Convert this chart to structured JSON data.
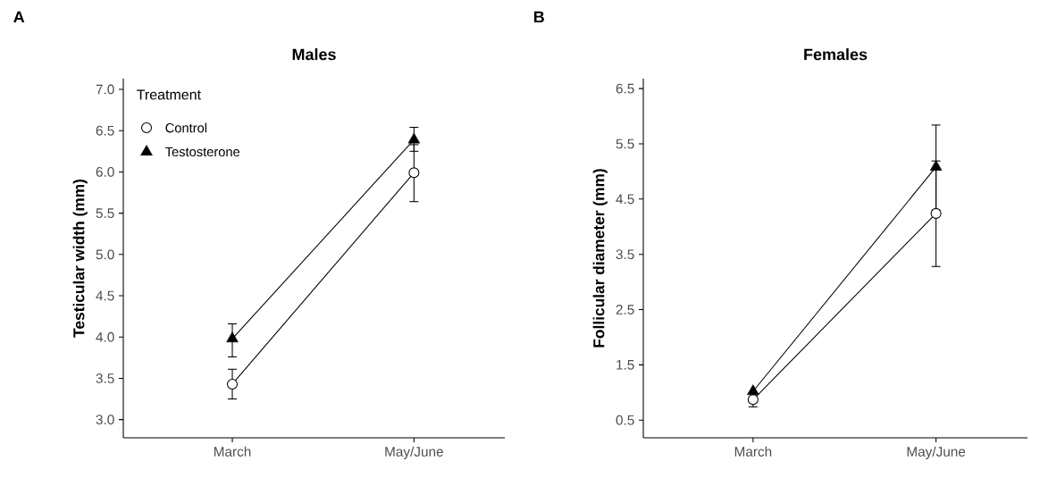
{
  "chart_data": [
    {
      "type": "line",
      "title": "Males",
      "ylabel": "Testicular width (mm)",
      "annotations": [
        "A"
      ],
      "legend_title": "Treatment",
      "legend": "top left",
      "categories": [
        "March",
        "May/June"
      ],
      "ylim": [
        2.78,
        7.13
      ],
      "yticks": [
        {
          "value": 3,
          "label": "3.0"
        },
        {
          "value": 3.5,
          "label": "3.5"
        },
        {
          "value": 4,
          "label": "4.0"
        },
        {
          "value": 4.5,
          "label": "4.5"
        },
        {
          "value": 5,
          "label": "5.0"
        },
        {
          "value": 5.5,
          "label": "5.5"
        },
        {
          "value": 6,
          "label": "6.0"
        },
        {
          "value": 6.5,
          "label": "6.5"
        },
        {
          "value": 7,
          "label": "7.0"
        }
      ],
      "series": [
        {
          "name": "Control",
          "color": "#000000",
          "marker": "circle",
          "values": [
            3.43,
            5.99
          ],
          "errors": [
            [
              3.25,
              3.61
            ],
            [
              5.64,
              6.33
            ]
          ]
        },
        {
          "name": "Testosterone",
          "color": "#000000",
          "marker": "triangle",
          "values": [
            3.98,
            6.39
          ],
          "errors": [
            [
              3.76,
              4.16
            ],
            [
              6.25,
              6.54
            ]
          ]
        }
      ]
    },
    {
      "type": "line",
      "title": "Females",
      "ylabel": "Follicular diameter (mm)",
      "annotations": [
        "B"
      ],
      "categories": [
        "March",
        "May/June"
      ],
      "ylim": [
        0.18,
        6.68
      ],
      "yticks": [
        0.5,
        1.5,
        2.5,
        3.5,
        4.5,
        5.5,
        6.5
      ],
      "series": [
        {
          "color": "#000000",
          "marker": "circle",
          "values": [
            0.87,
            4.24
          ],
          "errors": [
            [
              0.74,
              0.99
            ],
            [
              3.28,
              5.19
            ]
          ]
        },
        {
          "color": "#000000",
          "marker": "triangle",
          "values": [
            1.02,
            5.08
          ],
          "errors": [
            null,
            [
              4.3,
              5.84
            ]
          ]
        }
      ]
    }
  ]
}
